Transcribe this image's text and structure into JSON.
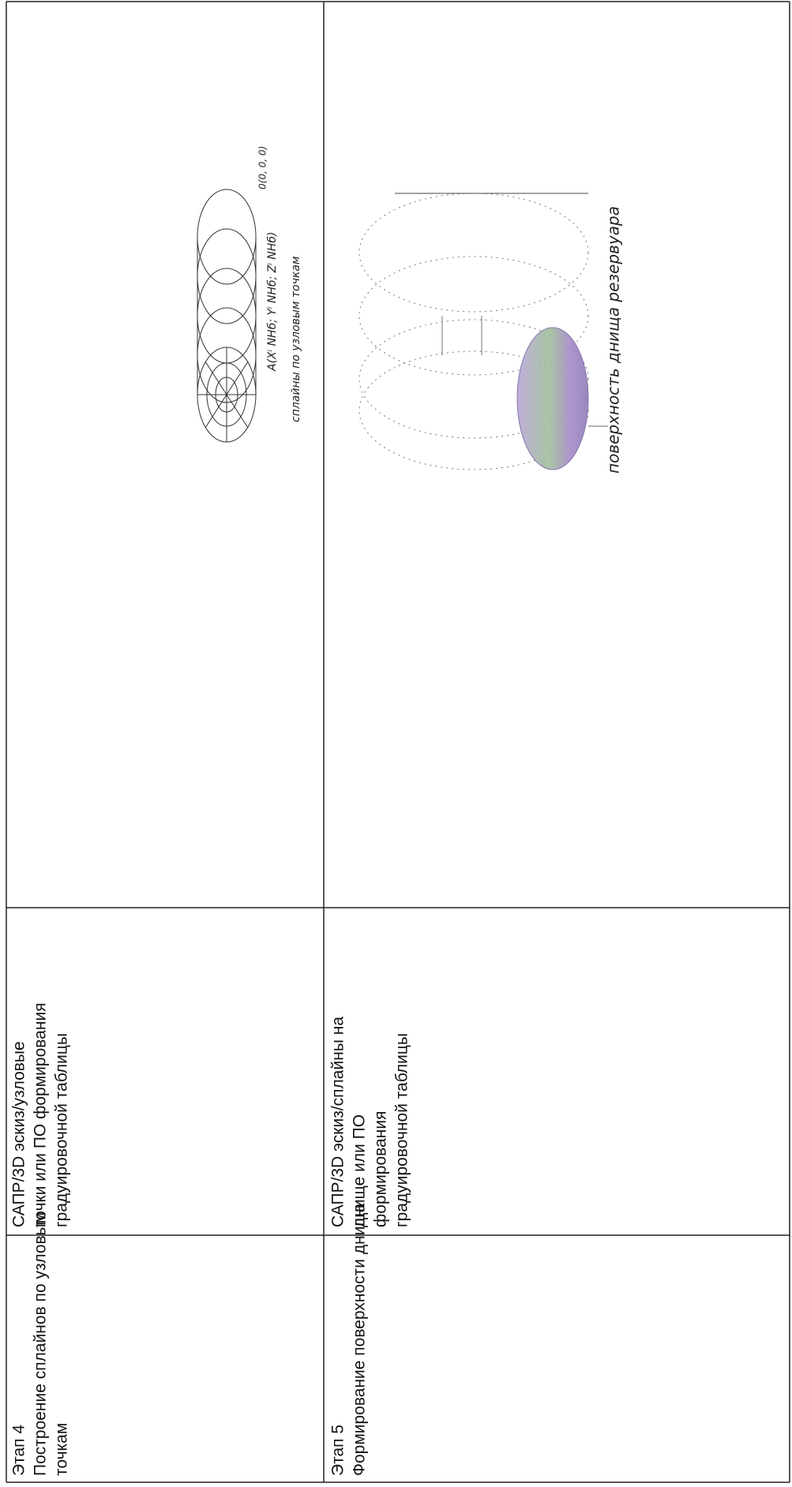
{
  "table": {
    "rows": [
      {
        "stage": [
          "Этап 4",
          "Построение сплайнов по узловым",
          "точкам"
        ],
        "tools": [
          "САПР/3D эскиз/узловые",
          "точки или ПО формирования",
          "градуировочной таблицы"
        ],
        "figure": {
          "labels": [
            "0(0, 0, 0)",
            "A(Xⁱ NHб; Yⁱ NHб; Zⁱ NHб)",
            "сплайны по узловым точкам"
          ]
        }
      },
      {
        "stage": [
          "Этап 5",
          "Формирование поверхности днища"
        ],
        "tools": [
          "САПР/3D эскиз/сплайны на",
          "днище или ПО",
          "формирования",
          "градуировочной таблицы"
        ],
        "figure": {
          "labels": [
            "поверхность днища резервуара"
          ]
        }
      }
    ]
  }
}
